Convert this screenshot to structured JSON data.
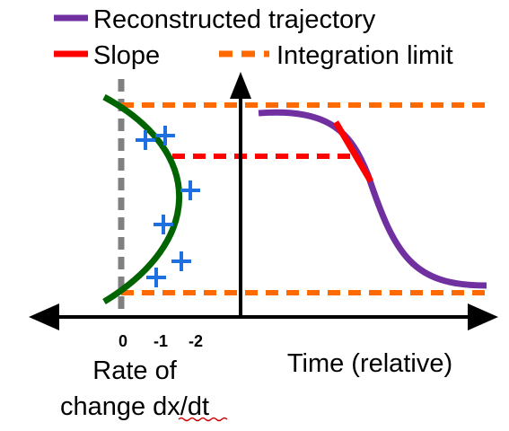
{
  "legend": {
    "items": [
      {
        "label": "Reconstructed trajectory",
        "color": "#7030A0",
        "style": "solid"
      },
      {
        "label": "Slope",
        "color": "#FF0000",
        "style": "solid"
      },
      {
        "label": "Integration limit",
        "color": "#FF6A00",
        "style": "dashed"
      }
    ]
  },
  "left_axis": {
    "ticks": [
      "0",
      "-1",
      "-2"
    ],
    "title_line1": "Rate of",
    "title_line2": "change dx/dt"
  },
  "right_axis": {
    "title": "Time (relative)"
  },
  "colors": {
    "trajectory": "#7030A0",
    "slope": "#FF0000",
    "limit": "#FF6A00",
    "rate_curve": "#006400",
    "samples": "#1E6FE0",
    "zero_line": "#808080",
    "axes": "#000000"
  }
}
